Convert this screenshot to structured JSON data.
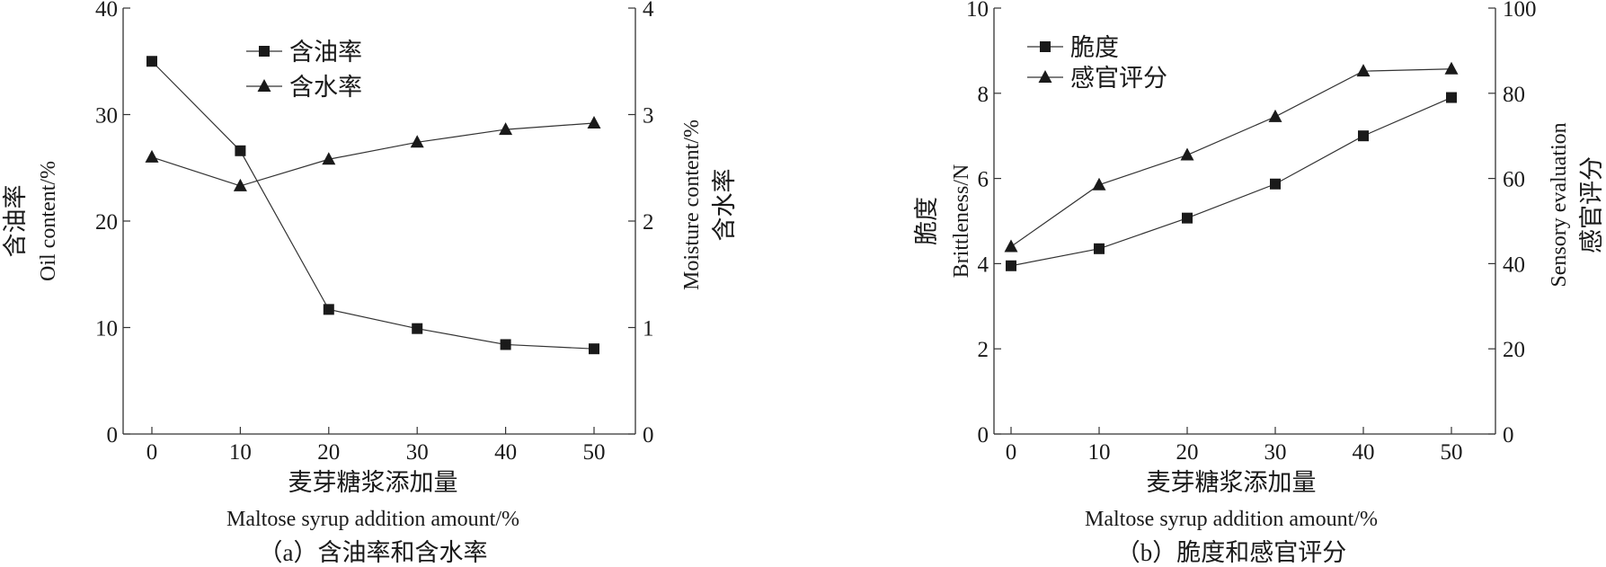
{
  "chart_data": [
    {
      "type": "line",
      "caption": "（a）含油率和含水率",
      "x": [
        0,
        10,
        20,
        30,
        40,
        50
      ],
      "xticks": [
        "0",
        "10",
        "20",
        "30",
        "40",
        "50"
      ],
      "xlabel_cn": "麦芽糖浆添加量",
      "xlabel_en": "Maltose syrup addition amount/%",
      "ylabel_cn": "含油率",
      "ylabel_en": "Oil content/%",
      "ylim": [
        0,
        40
      ],
      "yticks": [
        "0",
        "10",
        "20",
        "30",
        "40"
      ],
      "y2label_cn": "含水率",
      "y2label_en": "Moisture content/%",
      "y2lim": [
        0,
        4
      ],
      "y2ticks": [
        "0",
        "1",
        "2",
        "3",
        "4"
      ],
      "legend_position": "top-center",
      "series": [
        {
          "name": "含油率",
          "marker": "square",
          "axis": "left",
          "values": [
            35.0,
            26.6,
            11.7,
            9.9,
            8.4,
            8.0
          ]
        },
        {
          "name": "含水率",
          "marker": "triangle",
          "axis": "right",
          "values": [
            2.6,
            2.33,
            2.58,
            2.74,
            2.86,
            2.92
          ]
        }
      ]
    },
    {
      "type": "line",
      "caption": "（b）脆度和感官评分",
      "x": [
        0,
        10,
        20,
        30,
        40,
        50
      ],
      "xticks": [
        "0",
        "10",
        "20",
        "30",
        "40",
        "50"
      ],
      "xlabel_cn": "麦芽糖浆添加量",
      "xlabel_en": "Maltose syrup addition amount/%",
      "ylabel_cn": "脆度",
      "ylabel_en": "Brittleness/N",
      "ylim": [
        0,
        10
      ],
      "yticks": [
        "0",
        "2",
        "4",
        "6",
        "8",
        "10"
      ],
      "y2label_cn": "感官评分",
      "y2label_en": "Sensory evaluation",
      "y2lim": [
        0,
        100
      ],
      "y2ticks": [
        "0",
        "20",
        "40",
        "60",
        "80",
        "100"
      ],
      "legend_position": "top-left",
      "series": [
        {
          "name": "脆度",
          "marker": "square",
          "axis": "left",
          "values": [
            3.95,
            4.35,
            5.07,
            5.87,
            7.0,
            7.9
          ]
        },
        {
          "name": "感官评分",
          "marker": "triangle",
          "axis": "right",
          "values": [
            44,
            58.5,
            65.5,
            74.5,
            85.2,
            85.7
          ]
        }
      ]
    }
  ]
}
